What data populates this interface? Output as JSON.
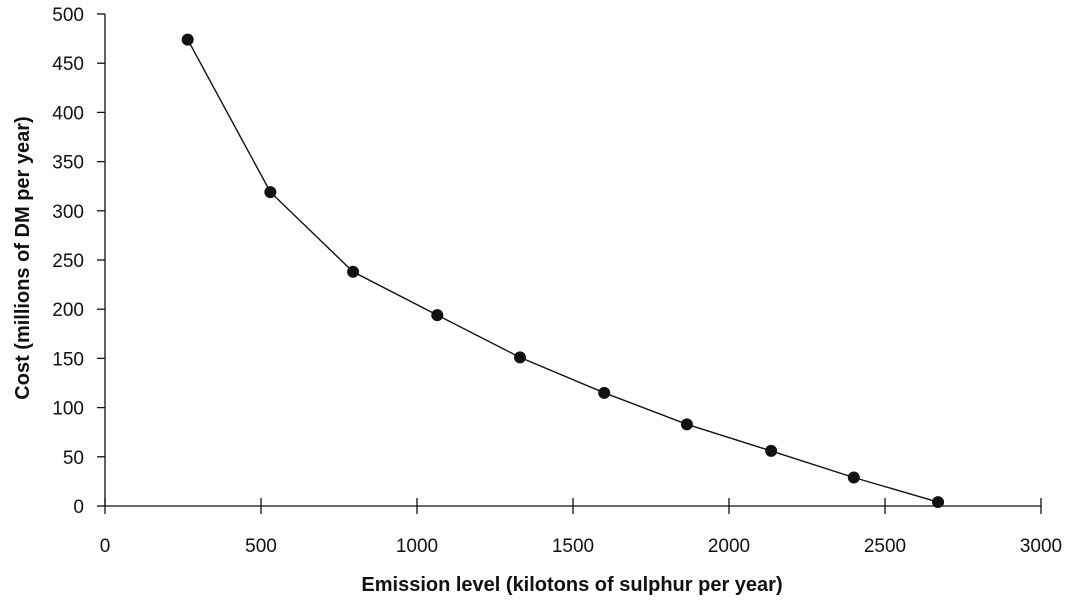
{
  "chart_data": {
    "type": "line",
    "title": "",
    "xlabel": "Emission level (kilotons of sulphur per year)",
    "ylabel": "Cost (millions of DM per year)",
    "xlim": [
      0,
      3000
    ],
    "ylim": [
      0,
      500
    ],
    "xticks": [
      0,
      500,
      1000,
      1500,
      2000,
      2500,
      3000
    ],
    "yticks": [
      0,
      50,
      100,
      150,
      200,
      250,
      300,
      350,
      400,
      450,
      500
    ],
    "grid": false,
    "legend": "none",
    "markers": "filled-circle",
    "series": [
      {
        "x": [
          265,
          530,
          795,
          1065,
          1330,
          1600,
          1865,
          2135,
          2400,
          2670
        ],
        "y": [
          474,
          319,
          238,
          194,
          151,
          115,
          83,
          56,
          29,
          4
        ]
      }
    ]
  }
}
